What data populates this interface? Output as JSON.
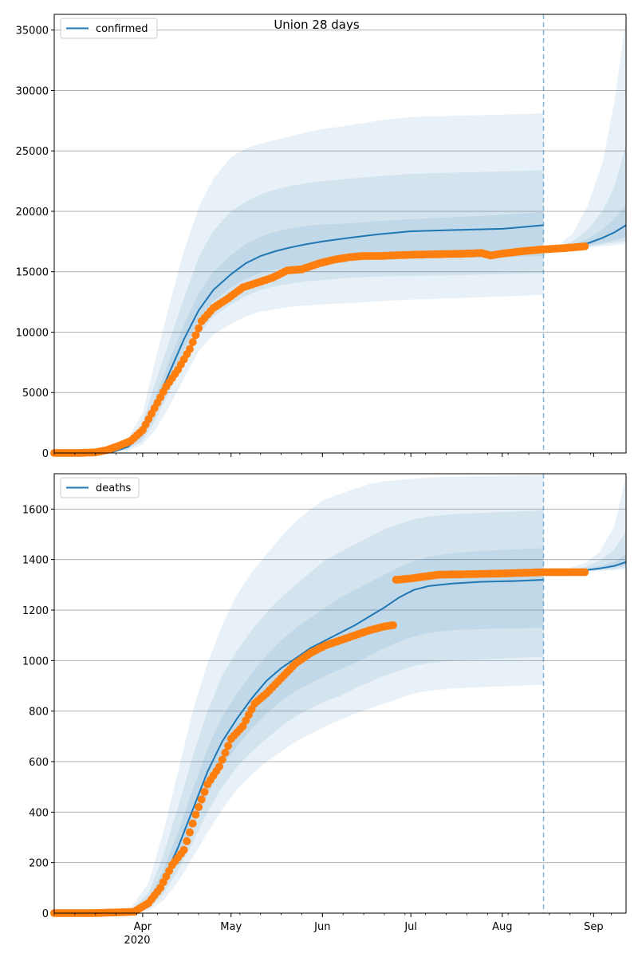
{
  "figure": {
    "suptitle": "Union 28 days",
    "x_ticks": [
      "Apr",
      "May",
      "Jun",
      "Jul",
      "Aug",
      "Sep"
    ],
    "x_year": "2020"
  },
  "colors": {
    "model_line": "#1f77b4",
    "band": "#1f77b4",
    "observed": "#ff7f0e",
    "cutoff": "#1f77b4",
    "grid": "#b0b0b0"
  },
  "chart_data": [
    {
      "type": "line",
      "title": "Union 28 days",
      "xlabel": "",
      "ylabel": "",
      "legend": "top-left",
      "grid": true,
      "legend_label": "confirmed",
      "x_range": [
        "2020-03-02",
        "2020-09-12"
      ],
      "ylim": [
        0,
        36300
      ],
      "yticks": [
        0,
        5000,
        10000,
        15000,
        20000,
        25000,
        30000,
        35000
      ],
      "forecast_start": "2020-08-15",
      "model": {
        "fit": {
          "x": [
            "2020-03-02",
            "2020-03-15",
            "2020-03-22",
            "2020-03-27",
            "2020-04-01",
            "2020-04-05",
            "2020-04-10",
            "2020-04-15",
            "2020-04-20",
            "2020-04-25",
            "2020-05-01",
            "2020-05-06",
            "2020-05-11",
            "2020-05-16",
            "2020-05-21",
            "2020-05-26",
            "2020-06-01",
            "2020-06-10",
            "2020-06-20",
            "2020-07-01",
            "2020-07-15",
            "2020-08-01",
            "2020-08-15"
          ],
          "median": [
            0,
            0,
            100,
            500,
            1600,
            3800,
            6600,
            9400,
            11800,
            13500,
            14800,
            15700,
            16300,
            16700,
            17000,
            17250,
            17500,
            17800,
            18100,
            18350,
            18450,
            18550,
            18850
          ],
          "p25": [
            0,
            0,
            80,
            400,
            1300,
            3200,
            5800,
            8600,
            11000,
            12600,
            13700,
            14400,
            14900,
            15200,
            15400,
            15600,
            15750,
            15900,
            16000,
            16100,
            16150,
            16200,
            16300
          ],
          "p75": [
            0,
            0,
            120,
            600,
            1900,
            4400,
            7600,
            10600,
            13200,
            15000,
            16400,
            17300,
            17900,
            18300,
            18600,
            18800,
            18900,
            19000,
            19200,
            19350,
            19500,
            19700,
            19950
          ],
          "p10": [
            0,
            0,
            60,
            300,
            1000,
            2600,
            5000,
            7600,
            9800,
            11300,
            12300,
            13000,
            13500,
            13800,
            14000,
            14200,
            14300,
            14500,
            14600,
            14650,
            14700,
            14800,
            14900
          ],
          "p90": [
            0,
            0,
            160,
            800,
            2500,
            5600,
            9200,
            12800,
            16200,
            18400,
            20000,
            20800,
            21400,
            21800,
            22100,
            22300,
            22500,
            22700,
            22900,
            23100,
            23200,
            23300,
            23400
          ],
          "p2_5": [
            0,
            0,
            40,
            200,
            700,
            1800,
            3800,
            6200,
            8400,
            9800,
            10700,
            11300,
            11700,
            11900,
            12100,
            12200,
            12300,
            12400,
            12550,
            12700,
            12800,
            12950,
            13100
          ],
          "p97_5": [
            0,
            0,
            250,
            1200,
            3300,
            7400,
            12200,
            16700,
            20300,
            22700,
            24500,
            25200,
            25600,
            25900,
            26200,
            26500,
            26800,
            27100,
            27500,
            27800,
            27900,
            28000,
            28100
          ]
        },
        "forecast": {
          "x": [
            "2020-08-15",
            "2020-08-20",
            "2020-08-25",
            "2020-08-30",
            "2020-09-04",
            "2020-09-08",
            "2020-09-12"
          ],
          "median": [
            16850,
            16950,
            17100,
            17350,
            17800,
            18250,
            18850
          ],
          "p25": [
            16850,
            16920,
            17020,
            17180,
            17400,
            17600,
            17850
          ],
          "p75": [
            16850,
            17000,
            17250,
            17700,
            18500,
            19400,
            20500
          ],
          "p10": [
            16850,
            16900,
            16980,
            17080,
            17250,
            17400,
            17550
          ],
          "p90": [
            16850,
            17050,
            17550,
            18500,
            20000,
            22000,
            25500
          ],
          "p2_5": [
            16850,
            16880,
            16930,
            17000,
            17100,
            17200,
            17300
          ],
          "p97_5": [
            16850,
            17150,
            18200,
            20500,
            24000,
            29000,
            36000
          ]
        }
      },
      "observed": {
        "x": [
          "2020-03-02",
          "2020-03-10",
          "2020-03-16",
          "2020-03-20",
          "2020-03-24",
          "2020-03-28",
          "2020-04-01",
          "2020-04-05",
          "2020-04-09",
          "2020-04-13",
          "2020-04-17",
          "2020-04-21",
          "2020-04-25",
          "2020-04-30",
          "2020-05-05",
          "2020-05-10",
          "2020-05-15",
          "2020-05-20",
          "2020-05-25",
          "2020-05-31",
          "2020-06-05",
          "2020-06-10",
          "2020-06-15",
          "2020-06-20",
          "2020-06-25",
          "2020-07-01",
          "2020-07-10",
          "2020-07-20",
          "2020-07-25",
          "2020-07-28",
          "2020-08-01",
          "2020-08-08",
          "2020-08-15",
          "2020-08-22",
          "2020-08-29"
        ],
        "values": [
          0,
          0,
          50,
          250,
          600,
          1000,
          1900,
          3700,
          5500,
          6900,
          8600,
          10900,
          12000,
          12800,
          13700,
          14100,
          14500,
          15100,
          15200,
          15700,
          16000,
          16200,
          16300,
          16300,
          16350,
          16400,
          16450,
          16500,
          16550,
          16350,
          16500,
          16700,
          16850,
          16950,
          17100
        ]
      }
    },
    {
      "type": "line",
      "title": "",
      "xlabel": "",
      "ylabel": "",
      "legend": "top-left",
      "grid": true,
      "legend_label": "deaths",
      "x_range": [
        "2020-03-02",
        "2020-09-12"
      ],
      "ylim": [
        0,
        1740
      ],
      "yticks": [
        0,
        200,
        400,
        600,
        800,
        1000,
        1200,
        1400,
        1600
      ],
      "forecast_start": "2020-08-15",
      "model": {
        "fit": {
          "x": [
            "2020-03-02",
            "2020-03-20",
            "2020-03-28",
            "2020-04-03",
            "2020-04-08",
            "2020-04-13",
            "2020-04-18",
            "2020-04-23",
            "2020-04-28",
            "2020-05-03",
            "2020-05-08",
            "2020-05-13",
            "2020-05-18",
            "2020-05-23",
            "2020-05-28",
            "2020-06-02",
            "2020-06-07",
            "2020-06-12",
            "2020-06-17",
            "2020-06-22",
            "2020-06-27",
            "2020-07-02",
            "2020-07-07",
            "2020-07-15",
            "2020-07-25",
            "2020-08-05",
            "2020-08-15"
          ],
          "median": [
            0,
            0,
            5,
            40,
            130,
            260,
            410,
            560,
            680,
            770,
            850,
            920,
            970,
            1010,
            1050,
            1080,
            1110,
            1140,
            1175,
            1210,
            1250,
            1280,
            1295,
            1305,
            1312,
            1315,
            1320
          ],
          "p25": [
            0,
            0,
            3,
            28,
            100,
            210,
            340,
            470,
            580,
            660,
            730,
            790,
            840,
            880,
            910,
            940,
            965,
            990,
            1020,
            1050,
            1075,
            1095,
            1110,
            1120,
            1125,
            1128,
            1130
          ],
          "p75": [
            0,
            0,
            8,
            55,
            170,
            320,
            490,
            650,
            780,
            870,
            950,
            1020,
            1080,
            1130,
            1170,
            1210,
            1250,
            1280,
            1310,
            1340,
            1370,
            1395,
            1410,
            1425,
            1435,
            1440,
            1445
          ],
          "p10": [
            0,
            0,
            2,
            18,
            75,
            170,
            280,
            400,
            500,
            580,
            640,
            690,
            740,
            780,
            810,
            840,
            860,
            890,
            915,
            940,
            960,
            980,
            990,
            1000,
            1005,
            1010,
            1015
          ],
          "p90": [
            0,
            0,
            12,
            80,
            230,
            420,
            620,
            800,
            940,
            1040,
            1120,
            1190,
            1250,
            1300,
            1350,
            1400,
            1430,
            1460,
            1490,
            1520,
            1540,
            1560,
            1570,
            1580,
            1585,
            1590,
            1595
          ],
          "p2_5": [
            0,
            0,
            1,
            10,
            50,
            125,
            220,
            320,
            410,
            490,
            550,
            600,
            640,
            680,
            710,
            740,
            765,
            790,
            810,
            830,
            850,
            870,
            880,
            890,
            895,
            900,
            905
          ],
          "p97_5": [
            0,
            0,
            20,
            120,
            320,
            560,
            800,
            990,
            1140,
            1260,
            1350,
            1420,
            1490,
            1550,
            1600,
            1640,
            1660,
            1680,
            1700,
            1710,
            1715,
            1720,
            1725,
            1728,
            1730,
            1732,
            1735
          ]
        },
        "forecast": {
          "x": [
            "2020-08-15",
            "2020-08-22",
            "2020-08-29",
            "2020-09-03",
            "2020-09-08",
            "2020-09-12"
          ],
          "median": [
            1350,
            1353,
            1358,
            1365,
            1375,
            1390
          ],
          "p25": [
            1350,
            1352,
            1355,
            1360,
            1368,
            1378
          ],
          "p75": [
            1350,
            1354,
            1362,
            1374,
            1392,
            1420
          ],
          "p10": [
            1350,
            1351,
            1354,
            1358,
            1363,
            1370
          ],
          "p90": [
            1350,
            1356,
            1370,
            1395,
            1440,
            1510
          ],
          "p2_5": [
            1350,
            1351,
            1352,
            1355,
            1358,
            1362
          ],
          "p97_5": [
            1350,
            1360,
            1385,
            1430,
            1530,
            1730
          ]
        }
      },
      "observed": {
        "x": [
          "2020-03-02",
          "2020-03-15",
          "2020-03-29",
          "2020-04-03",
          "2020-04-07",
          "2020-04-11",
          "2020-04-15",
          "2020-04-19",
          "2020-04-23",
          "2020-04-27",
          "2020-05-01",
          "2020-05-05",
          "2020-05-09",
          "2020-05-13",
          "2020-05-18",
          "2020-05-23",
          "2020-05-28",
          "2020-06-02",
          "2020-06-07",
          "2020-06-12",
          "2020-06-17",
          "2020-06-22",
          "2020-06-25",
          "2020-06-26",
          "2020-07-01",
          "2020-07-10",
          "2020-07-20",
          "2020-08-01",
          "2020-08-15",
          "2020-08-22",
          "2020-08-29"
        ],
        "values": [
          0,
          0,
          5,
          40,
          100,
          190,
          250,
          390,
          510,
          580,
          690,
          740,
          830,
          870,
          930,
          990,
          1030,
          1060,
          1080,
          1100,
          1120,
          1135,
          1140,
          1320,
          1325,
          1340,
          1342,
          1345,
          1350,
          1350,
          1350
        ]
      }
    }
  ]
}
